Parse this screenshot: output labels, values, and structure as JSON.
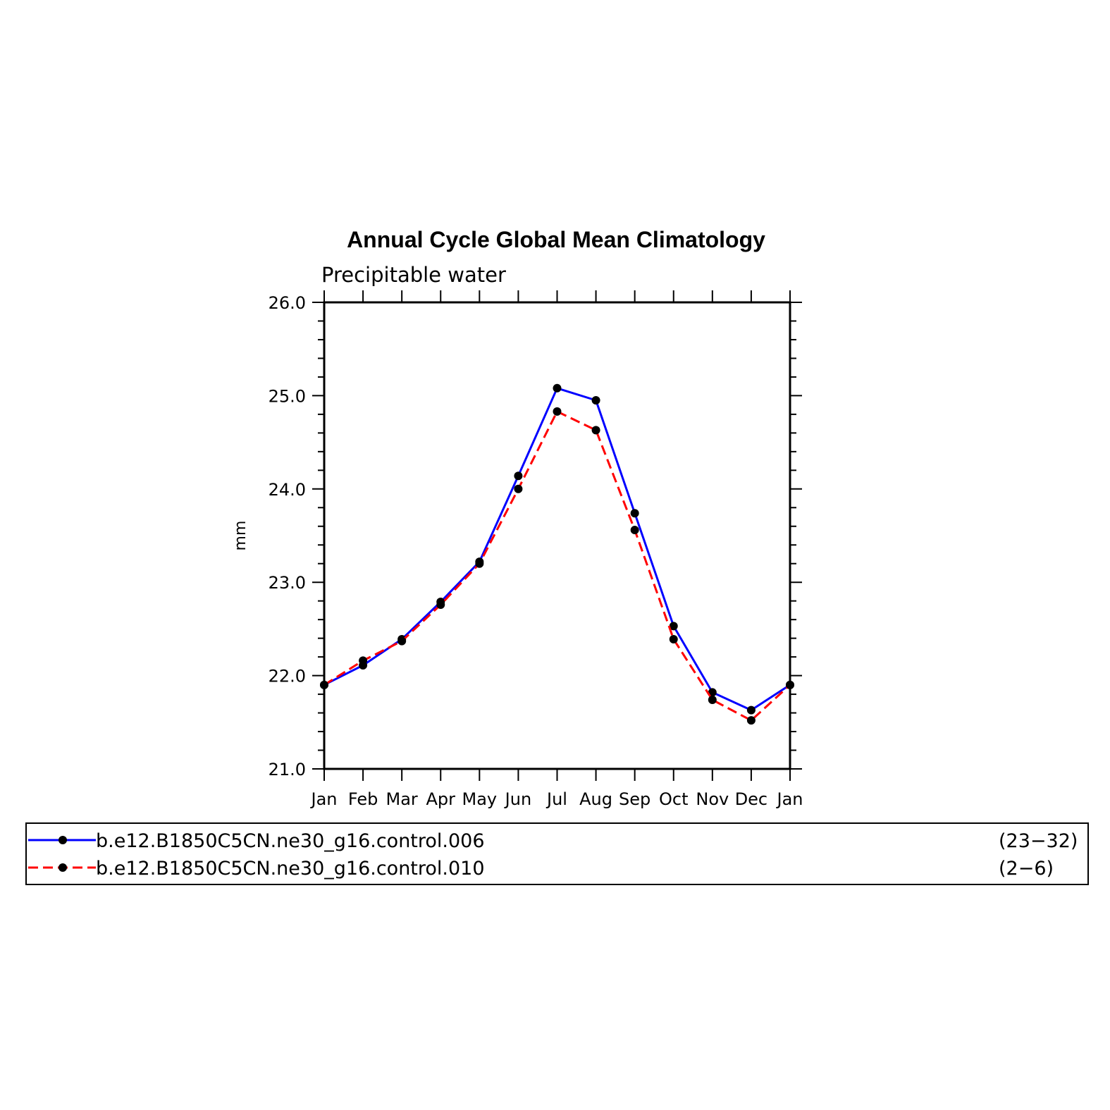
{
  "chart_data": {
    "type": "line",
    "title": "Annual Cycle Global Mean Climatology",
    "subtitle": "Precipitable water",
    "xlabel": "",
    "ylabel": "mm",
    "categories": [
      "Jan",
      "Feb",
      "Mar",
      "Apr",
      "May",
      "Jun",
      "Jul",
      "Aug",
      "Sep",
      "Oct",
      "Nov",
      "Dec",
      "Jan"
    ],
    "ylim": [
      21.0,
      26.0
    ],
    "yticks": [
      "21.0",
      "22.0",
      "23.0",
      "24.0",
      "25.0",
      "26.0"
    ],
    "grid": false,
    "legend_position": "bottom",
    "series": [
      {
        "name": "b.e12.B1850C5CN.ne30_g16.control.006",
        "years": "(23−32)",
        "color": "#0000ff",
        "dash": "solid",
        "values": [
          21.9,
          22.11,
          22.39,
          22.79,
          23.22,
          24.14,
          25.08,
          24.95,
          23.74,
          22.53,
          21.82,
          21.63,
          21.9
        ]
      },
      {
        "name": "b.e12.B1850C5CN.ne30_g16.control.010",
        "years": "(2−6)",
        "color": "#ff0000",
        "dash": "dashed",
        "values": [
          21.9,
          22.16,
          22.37,
          22.76,
          23.2,
          24.0,
          24.83,
          24.63,
          23.56,
          22.39,
          21.74,
          21.52,
          21.9
        ]
      }
    ]
  }
}
